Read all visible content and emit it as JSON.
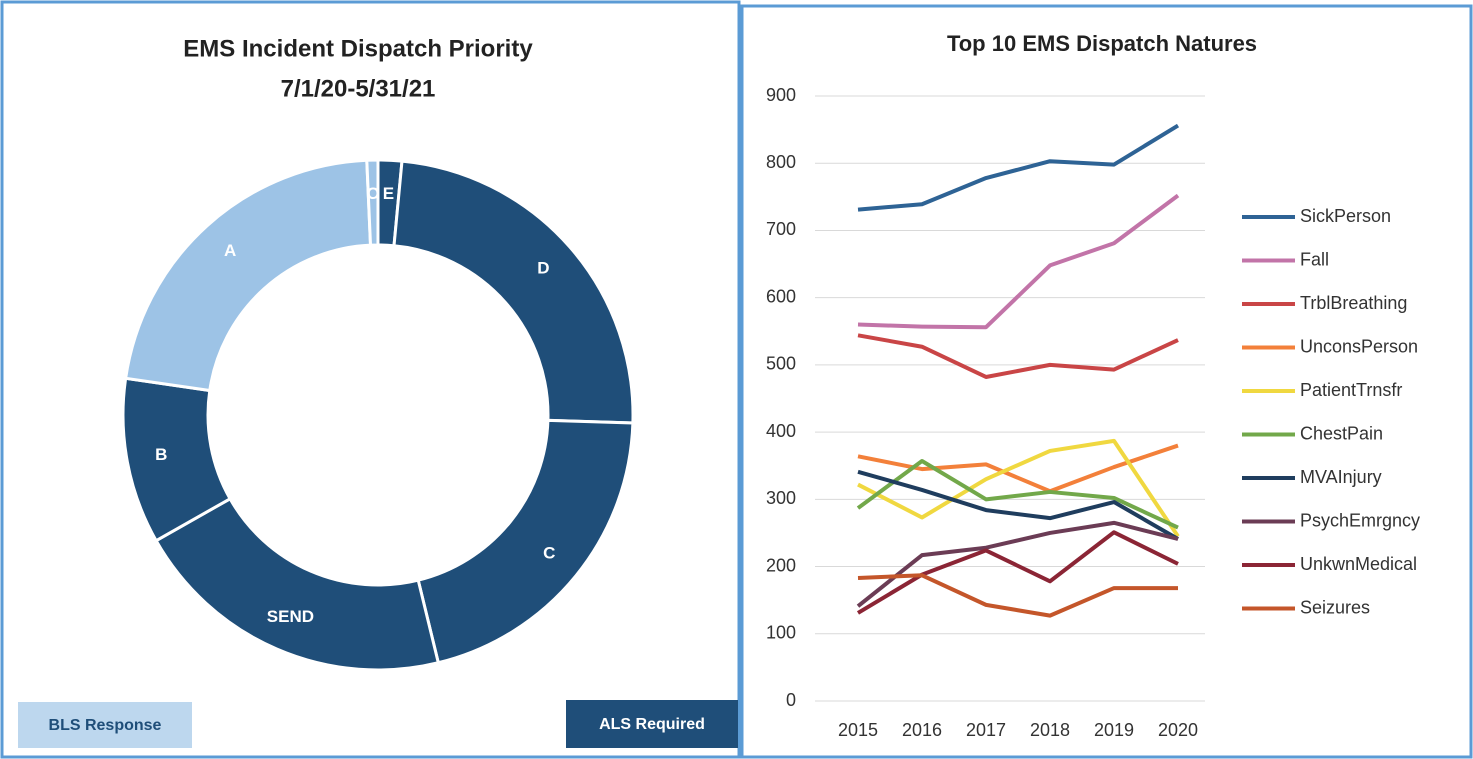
{
  "chart_data": [
    {
      "type": "pie",
      "title": "EMS Incident Dispatch Priority",
      "subtitle": "7/1/20-5/31/21",
      "categories": [
        "E",
        "D",
        "C",
        "SEND",
        "B",
        "A",
        "O"
      ],
      "values": [
        1.5,
        24,
        20.7,
        20.6,
        10.5,
        22,
        0.7
      ],
      "colors": [
        "#1f4e79",
        "#1f4e79",
        "#1f4e79",
        "#1f4e79",
        "#1f4e79",
        "#9dc3e6",
        "#9dc3e6"
      ],
      "annotations": [
        {
          "text": "BLS Response",
          "color": "#bdd7ee",
          "text_color": "#1f4e79"
        },
        {
          "text": "ALS Required",
          "color": "#1f4e79",
          "text_color": "#ffffff"
        }
      ]
    },
    {
      "type": "line",
      "title": "Top 10 EMS Dispatch Natures",
      "categories": [
        "2015",
        "2016",
        "2017",
        "2018",
        "2019",
        "2020"
      ],
      "ylim": [
        0,
        900
      ],
      "yticks": [
        0,
        100,
        200,
        300,
        400,
        500,
        600,
        700,
        800,
        900
      ],
      "grid": true,
      "legend": "right",
      "series": [
        {
          "name": "SickPerson",
          "color": "#2e6395",
          "values": [
            731,
            739,
            778,
            803,
            798,
            856
          ]
        },
        {
          "name": "Fall",
          "color": "#c274a8",
          "values": [
            560,
            557,
            556,
            648,
            681,
            752
          ]
        },
        {
          "name": "TrblBreathing",
          "color": "#c94546",
          "values": [
            544,
            527,
            482,
            500,
            493,
            537
          ]
        },
        {
          "name": "UnconsPerson",
          "color": "#f3803a",
          "values": [
            364,
            345,
            352,
            312,
            348,
            380
          ]
        },
        {
          "name": "PatientTrnsfr",
          "color": "#f0d840",
          "values": [
            322,
            273,
            330,
            372,
            387,
            245
          ]
        },
        {
          "name": "ChestPain",
          "color": "#72a84a",
          "values": [
            287,
            357,
            300,
            311,
            302,
            258
          ]
        },
        {
          "name": "MVAInjury",
          "color": "#1f3d5e",
          "values": [
            341,
            314,
            284,
            272,
            296,
            241
          ]
        },
        {
          "name": "PsychEmrgncy",
          "color": "#6b3c55",
          "values": [
            141,
            217,
            228,
            250,
            265,
            241
          ]
        },
        {
          "name": "UnkwnMedical",
          "color": "#8b2535",
          "values": [
            131,
            188,
            224,
            178,
            251,
            204
          ]
        },
        {
          "name": "Seizures",
          "color": "#c4562a",
          "values": [
            183,
            187,
            143,
            127,
            168,
            168
          ]
        }
      ]
    }
  ]
}
